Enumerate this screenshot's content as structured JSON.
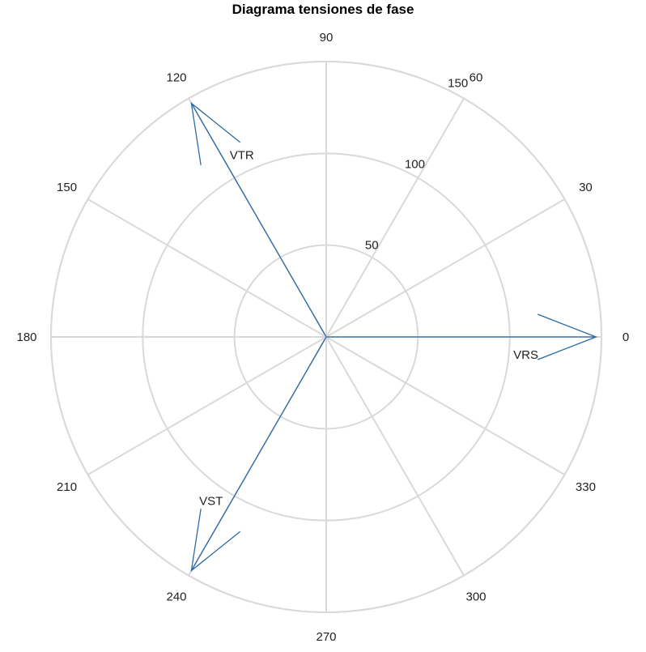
{
  "chart_data": {
    "type": "polar",
    "title": "Diagrama tensiones de fase",
    "angular_ticks": [
      "0",
      "30",
      "60",
      "90",
      "120",
      "150",
      "180",
      "210",
      "240",
      "270",
      "300",
      "330"
    ],
    "radial_ticks": [
      "50",
      "100",
      "150"
    ],
    "rlim": [
      0,
      150
    ],
    "grid": true,
    "series": [
      {
        "name": "VRS",
        "magnitude": 147,
        "angle_deg": 0
      },
      {
        "name": "VTR",
        "magnitude": 147,
        "angle_deg": 120
      },
      {
        "name": "VST",
        "magnitude": 147,
        "angle_deg": 240
      }
    ],
    "colors": {
      "phasor": "#2e6aa8",
      "grid": "#d9d9d9"
    }
  }
}
